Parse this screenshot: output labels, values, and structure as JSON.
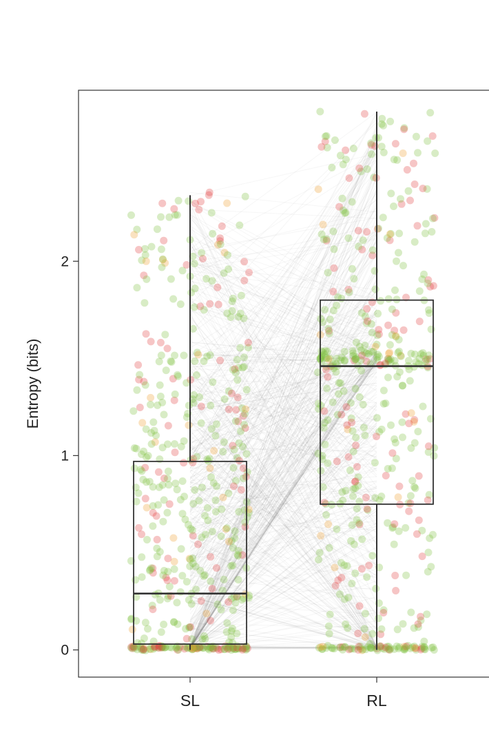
{
  "chart_data": {
    "type": "box",
    "ylabel": "Entropy (bits)",
    "xlabel": "",
    "categories": [
      "SL",
      "RL"
    ],
    "yticks": [
      0,
      1,
      2
    ],
    "ylim": [
      -0.14,
      2.88
    ],
    "grid": false,
    "legend": "none",
    "overlay": "jittered scatter points per category with gray lines pairing SL and RL values",
    "point_colors": {
      "green": "#7fbf3f",
      "red": "#e04040",
      "orange": "#f0a030"
    },
    "line_color": "#555555",
    "box_color": "#333333",
    "boxes": [
      {
        "category": "SL",
        "whisker_low": 0.0,
        "q1": 0.03,
        "median": 0.29,
        "q3": 0.97,
        "whisker_high": 2.34
      },
      {
        "category": "RL",
        "whisker_low": 0.0,
        "q1": 0.75,
        "median": 1.46,
        "q3": 1.8,
        "whisker_high": 2.77
      }
    ]
  }
}
